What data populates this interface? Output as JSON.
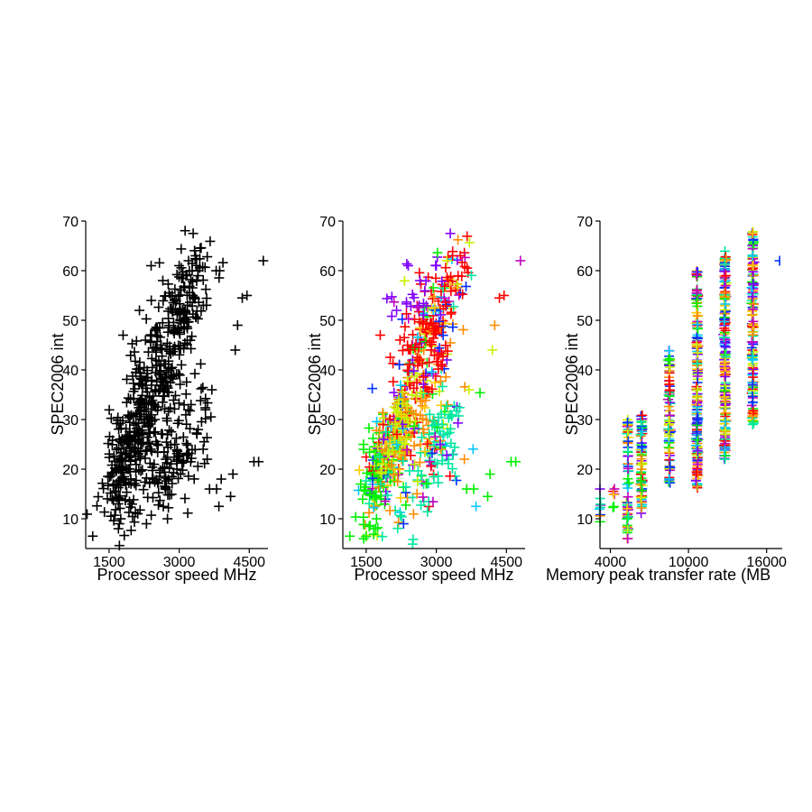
{
  "figure": {
    "panels": 3,
    "background": "#ffffff"
  },
  "chart_data": [
    {
      "type": "scatter",
      "marker": "plus",
      "color_mode": "single",
      "color": "#000000",
      "xlabel": "Processor speed MHz",
      "ylabel": "SPEC2006 int",
      "xlim": [
        1000,
        4900
      ],
      "ylim": [
        4,
        70
      ],
      "xticks": [
        1500,
        3000,
        4500
      ],
      "yticks": [
        10,
        20,
        30,
        40,
        50,
        60,
        70
      ],
      "grid": false,
      "legend": "none",
      "clusters": [
        {
          "cx": 1850,
          "cy": 22,
          "sx": 260,
          "sy": 6,
          "n": 150,
          "slope": 0.012
        },
        {
          "cx": 2400,
          "cy": 33,
          "sx": 350,
          "sy": 7,
          "n": 170,
          "slope": 0.014
        },
        {
          "cx": 2800,
          "cy": 46,
          "sx": 380,
          "sy": 7,
          "n": 140,
          "slope": 0.016
        },
        {
          "cx": 2900,
          "cy": 22,
          "sx": 400,
          "sy": 5,
          "n": 120,
          "slope": 0.01
        },
        {
          "cx": 3200,
          "cy": 55,
          "sx": 300,
          "sy": 4,
          "n": 60,
          "slope": 0.012
        }
      ],
      "x": [
        1150,
        1700,
        1720,
        1750,
        1800,
        1850,
        2150,
        2300,
        2400,
        2650,
        2750,
        3000,
        3200,
        3300,
        3350,
        3400,
        3600,
        3650,
        3700,
        3800,
        3850,
        3900,
        4100,
        4150,
        4200,
        4250,
        4350,
        4450,
        4600,
        4700,
        4800
      ],
      "y": [
        6.5,
        8,
        9,
        10,
        47,
        26,
        52,
        9,
        61,
        58,
        10,
        61,
        62,
        67.5,
        63,
        60,
        22,
        16,
        36,
        16,
        12.5,
        18,
        14.5,
        19,
        44,
        49,
        54.5,
        55,
        21.5,
        21.5,
        62
      ]
    },
    {
      "type": "scatter",
      "marker": "plus",
      "color_mode": "rainbow",
      "color_by": "group",
      "palette": [
        "#FF0000",
        "#FF8C00",
        "#FFC800",
        "#C8F000",
        "#00F000",
        "#00E8A0",
        "#00C8FF",
        "#0030FF",
        "#8000FF",
        "#C000C0"
      ],
      "xlabel": "Processor speed MHz",
      "ylabel": "SPEC2006 int",
      "xlim": [
        1000,
        4900
      ],
      "ylim": [
        4,
        70
      ],
      "xticks": [
        1500,
        3000,
        4500
      ],
      "yticks": [
        10,
        20,
        30,
        40,
        50,
        60,
        70
      ],
      "grid": false,
      "legend": "none",
      "clusters": [
        {
          "cx": 1850,
          "cy": 20,
          "sx": 260,
          "sy": 5,
          "n": 150,
          "slope": 0.012,
          "color": "#00F000"
        },
        {
          "cx": 2400,
          "cy": 30,
          "sx": 350,
          "sy": 6,
          "n": 160,
          "slope": 0.014,
          "color": "#FF8C00"
        },
        {
          "cx": 2800,
          "cy": 46,
          "sx": 380,
          "sy": 7,
          "n": 140,
          "slope": 0.016,
          "color": "#FF0000"
        },
        {
          "cx": 2900,
          "cy": 22,
          "sx": 400,
          "sy": 5,
          "n": 120,
          "slope": 0.01,
          "color": "#00E8A0"
        },
        {
          "cx": 3200,
          "cy": 55,
          "sx": 300,
          "sy": 4,
          "n": 60,
          "slope": 0.012,
          "color": "#FF0000"
        },
        {
          "cx": 2200,
          "cy": 28,
          "sx": 250,
          "sy": 5,
          "n": 60,
          "slope": 0.012,
          "color": "#C8F000"
        },
        {
          "cx": 2600,
          "cy": 55,
          "sx": 300,
          "sy": 4,
          "n": 25,
          "slope": 0.01,
          "color": "#8000FF"
        }
      ],
      "x": [
        1150,
        1700,
        1720,
        1800,
        2150,
        2300,
        2400,
        2650,
        3000,
        3300,
        3350,
        3600,
        3650,
        3700,
        3800,
        3850,
        4100,
        4150,
        4200,
        4250,
        4350,
        4450,
        4600,
        4700,
        4800
      ],
      "y": [
        6.5,
        8,
        10,
        47,
        52,
        9,
        61,
        58,
        61,
        67.5,
        63,
        22,
        16,
        36,
        16,
        12.5,
        14.5,
        19,
        44,
        49,
        54.5,
        55,
        21.5,
        21.5,
        62
      ],
      "point_colors": [
        "#00F000",
        "#00F000",
        "#00F000",
        "#FF0000",
        "#8000FF",
        "#0030FF",
        "#8000FF",
        "#8000FF",
        "#8000FF",
        "#8000FF",
        "#FF0000",
        "#FF8C00",
        "#00F000",
        "#C8F000",
        "#00F000",
        "#00C8FF",
        "#00F000",
        "#00F000",
        "#C8F000",
        "#FF8C00",
        "#FF0000",
        "#FF0000",
        "#00F000",
        "#00F000",
        "#C000C0"
      ]
    },
    {
      "type": "scatter",
      "marker": "plus",
      "color_mode": "rainbow",
      "color_by": "group",
      "palette": [
        "#FF0000",
        "#FF8C00",
        "#FFC800",
        "#C8F000",
        "#00F000",
        "#00E8A0",
        "#00C8FF",
        "#0030FF",
        "#8000FF",
        "#C000C0"
      ],
      "xlabel": "Memory peak transfer rate (MB",
      "ylabel": "SPEC2006 int",
      "xlim": [
        3200,
        17200
      ],
      "ylim": [
        4,
        70
      ],
      "xticks": [
        4000,
        10000,
        16000
      ],
      "yticks": [
        10,
        20,
        30,
        40,
        50,
        60,
        70
      ],
      "grid": false,
      "legend": "none",
      "columns": [
        {
          "x": 3200,
          "ymin": 9,
          "ymax": 16,
          "n": 8
        },
        {
          "x": 4266,
          "ymin": 12,
          "ymax": 17,
          "n": 6
        },
        {
          "x": 5333,
          "ymin": 6,
          "ymax": 30,
          "n": 60
        },
        {
          "x": 6400,
          "ymin": 11,
          "ymax": 31,
          "n": 70
        },
        {
          "x": 8533,
          "ymin": 17,
          "ymax": 44,
          "n": 90
        },
        {
          "x": 10666,
          "ymin": 16,
          "ymax": 60,
          "n": 180
        },
        {
          "x": 12800,
          "ymin": 22,
          "ymax": 64,
          "n": 200
        },
        {
          "x": 14933,
          "ymin": 29,
          "ymax": 68,
          "n": 140
        }
      ],
      "x": [
        17000,
        14933,
        14933,
        14933,
        14933,
        14933,
        5333,
        3200,
        12800
      ],
      "y": [
        62,
        67.5,
        29,
        33.5,
        37,
        42,
        6,
        16,
        22
      ],
      "point_colors": [
        "#0030FF",
        "#FFC800",
        "#00E8A0",
        "#0030FF",
        "#0030FF",
        "#00C8FF",
        "#C000C0",
        "#8000FF",
        "#00E8A0"
      ]
    }
  ]
}
